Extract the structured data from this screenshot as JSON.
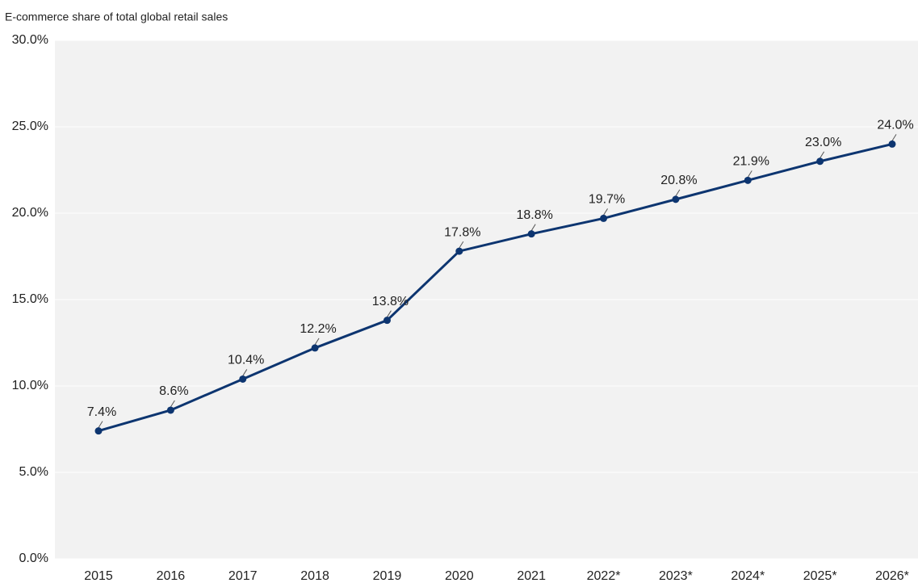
{
  "chart_data": {
    "type": "line",
    "title": "E-commerce share of total global retail sales",
    "categories": [
      "2015",
      "2016",
      "2017",
      "2018",
      "2019",
      "2020",
      "2021",
      "2022*",
      "2023*",
      "2024*",
      "2025*",
      "2026*"
    ],
    "series": [
      {
        "name": "E-commerce share",
        "color": "#0d3570",
        "values": [
          7.4,
          8.6,
          10.4,
          12.2,
          13.8,
          17.8,
          18.8,
          19.7,
          20.8,
          21.9,
          23.0,
          24.0
        ],
        "value_labels": [
          "7.4%",
          "8.6%",
          "10.4%",
          "12.2%",
          "13.8%",
          "17.8%",
          "18.8%",
          "19.7%",
          "20.8%",
          "21.9%",
          "23.0%",
          "24.0%"
        ]
      }
    ],
    "ylim": [
      0,
      30
    ],
    "yticks": [
      {
        "value": 0,
        "label": "0.0%"
      },
      {
        "value": 5,
        "label": "5.0%"
      },
      {
        "value": 10,
        "label": "10.0%"
      },
      {
        "value": 15,
        "label": "15.0%"
      },
      {
        "value": 20,
        "label": "20.0%"
      },
      {
        "value": 25,
        "label": "25.0%"
      },
      {
        "value": 30,
        "label": "30.0%"
      }
    ],
    "grid": true,
    "background": "#f2f2f2"
  }
}
